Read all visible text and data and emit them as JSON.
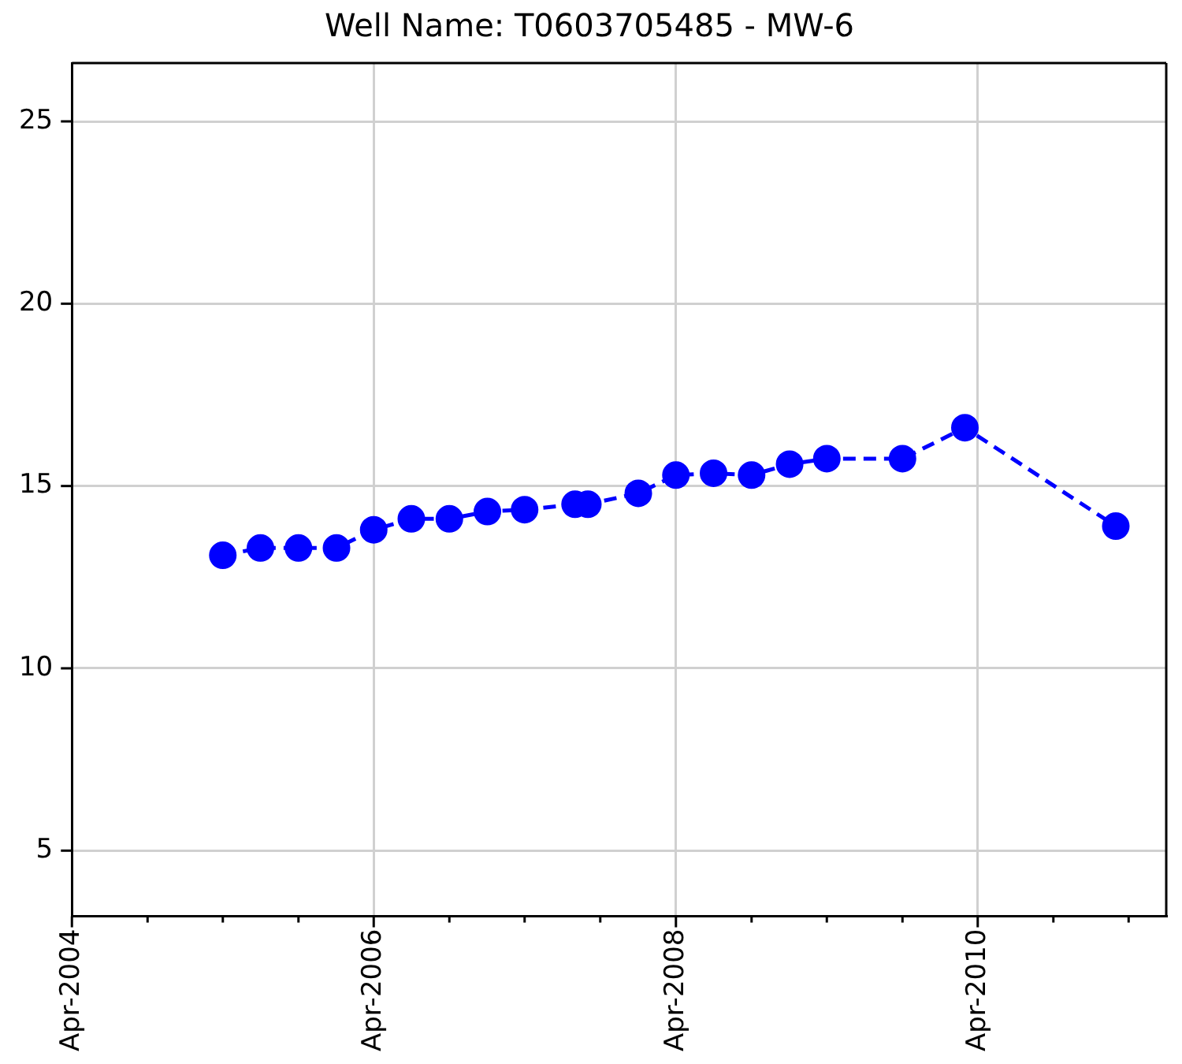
{
  "chart_data": {
    "type": "line",
    "title": "Well Name: T0603705485 - MW-6",
    "x": [
      "2005-04",
      "2005-07",
      "2005-10",
      "2006-01",
      "2006-04",
      "2006-07",
      "2006-10",
      "2007-01",
      "2007-04",
      "2007-08",
      "2007-09",
      "2008-01",
      "2008-04",
      "2008-07",
      "2008-10",
      "2009-01",
      "2009-04",
      "2009-10",
      "2010-03",
      "2011-03"
    ],
    "series": [
      {
        "color": "#0000ff",
        "values": [
          13.1,
          13.3,
          13.3,
          13.3,
          13.8,
          14.1,
          14.1,
          14.3,
          14.35,
          14.5,
          14.5,
          14.8,
          15.3,
          15.35,
          15.3,
          15.6,
          15.75,
          15.75,
          16.6,
          13.9
        ]
      }
    ],
    "marker": "circle",
    "line_style": "dashed",
    "grid": true,
    "xlim": [
      "2004-04",
      "2011-07"
    ],
    "xticks": [
      {
        "value": "2004-04",
        "label": "Apr-2004"
      },
      {
        "value": "2004-10",
        "label": null
      },
      {
        "value": "2005-04",
        "label": null
      },
      {
        "value": "2005-10",
        "label": null
      },
      {
        "value": "2006-04",
        "label": "Apr-2006"
      },
      {
        "value": "2006-10",
        "label": null
      },
      {
        "value": "2007-04",
        "label": null
      },
      {
        "value": "2007-10",
        "label": null
      },
      {
        "value": "2008-04",
        "label": "Apr-2008"
      },
      {
        "value": "2008-10",
        "label": null
      },
      {
        "value": "2009-04",
        "label": null
      },
      {
        "value": "2009-10",
        "label": null
      },
      {
        "value": "2010-04",
        "label": "Apr-2010"
      },
      {
        "value": "2010-10",
        "label": null
      },
      {
        "value": "2011-04",
        "label": null
      }
    ],
    "ylim": [
      3.2,
      26.6
    ],
    "yticks": [
      5,
      10,
      15,
      20,
      25
    ]
  }
}
